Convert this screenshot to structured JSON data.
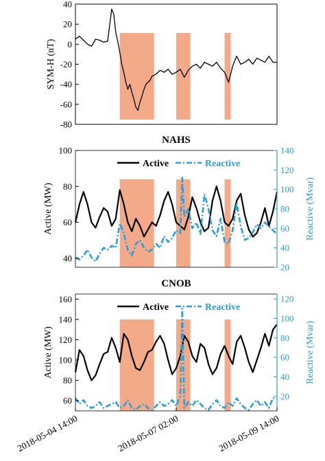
{
  "colors": {
    "active": "#000000",
    "reactive": "#2a9fd6",
    "shade": "#f4a988",
    "axis": "#000000"
  },
  "x_ticks": [
    "2018-05-04 14:00",
    "2018-05-07 02:00",
    "2018-05-09 14:00"
  ],
  "shaded_intervals": [
    [
      0.22,
      0.39
    ],
    [
      0.5,
      0.57
    ],
    [
      0.74,
      0.77
    ]
  ],
  "chart_data": [
    {
      "type": "line",
      "title": "",
      "ylabel": "SYM-H (nT)",
      "ylim": [
        -80,
        40
      ],
      "yticks": [
        40,
        20,
        0,
        -20,
        -40,
        -60,
        -80
      ],
      "series": [
        {
          "x": [
            0,
            0.02,
            0.04,
            0.06,
            0.08,
            0.1,
            0.12,
            0.14,
            0.16,
            0.18,
            0.19,
            0.2,
            0.21,
            0.22,
            0.23,
            0.24,
            0.25,
            0.26,
            0.27,
            0.28,
            0.29,
            0.3,
            0.31,
            0.32,
            0.33,
            0.34,
            0.35,
            0.36,
            0.37,
            0.38,
            0.4,
            0.42,
            0.44,
            0.46,
            0.48,
            0.5,
            0.52,
            0.54,
            0.56,
            0.58,
            0.6,
            0.62,
            0.64,
            0.66,
            0.68,
            0.7,
            0.72,
            0.74,
            0.76,
            0.78,
            0.8,
            0.82,
            0.84,
            0.86,
            0.88,
            0.9,
            0.92,
            0.94,
            0.96,
            0.98,
            1.0
          ],
          "values": [
            5,
            8,
            4,
            0,
            -2,
            5,
            4,
            2,
            3,
            35,
            30,
            12,
            3,
            -8,
            -20,
            -28,
            -38,
            -45,
            -40,
            -48,
            -55,
            -63,
            -66,
            -58,
            -52,
            -45,
            -40,
            -38,
            -36,
            -32,
            -30,
            -26,
            -28,
            -25,
            -30,
            -28,
            -25,
            -33,
            -26,
            -22,
            -20,
            -24,
            -18,
            -20,
            -22,
            -18,
            -24,
            -28,
            -38,
            -22,
            -12,
            -20,
            -18,
            -15,
            -20,
            -14,
            -16,
            -18,
            -12,
            -18,
            -18
          ]
        }
      ]
    },
    {
      "type": "line",
      "title": "NAHS",
      "ylabel": "Active (MW)",
      "ylabel_right": "Reactive (Mvar)",
      "ylim": [
        35,
        100
      ],
      "yticks": [
        100,
        80,
        60,
        40
      ],
      "ylim_right": [
        20,
        140
      ],
      "yticks_right": [
        140,
        120,
        100,
        80,
        60,
        40,
        20
      ],
      "legend": [
        "Active",
        "Reactive"
      ],
      "series": [
        {
          "name": "Active",
          "axis": "left",
          "x": [
            0,
            0.02,
            0.04,
            0.06,
            0.08,
            0.1,
            0.12,
            0.14,
            0.16,
            0.18,
            0.2,
            0.22,
            0.24,
            0.26,
            0.28,
            0.3,
            0.32,
            0.34,
            0.36,
            0.38,
            0.4,
            0.42,
            0.44,
            0.46,
            0.48,
            0.5,
            0.52,
            0.54,
            0.56,
            0.58,
            0.6,
            0.62,
            0.64,
            0.66,
            0.68,
            0.7,
            0.72,
            0.74,
            0.76,
            0.78,
            0.8,
            0.82,
            0.84,
            0.86,
            0.88,
            0.9,
            0.92,
            0.94,
            0.96,
            0.98,
            1.0
          ],
          "values": [
            60,
            70,
            77,
            70,
            60,
            57,
            63,
            68,
            66,
            58,
            62,
            78,
            70,
            60,
            55,
            62,
            58,
            52,
            56,
            60,
            58,
            64,
            72,
            77,
            70,
            60,
            58,
            56,
            63,
            74,
            68,
            60,
            55,
            57,
            72,
            80,
            72,
            60,
            58,
            62,
            72,
            76,
            64,
            56,
            52,
            54,
            60,
            68,
            58,
            66,
            77
          ]
        },
        {
          "name": "Reactive",
          "axis": "right",
          "x": [
            0,
            0.02,
            0.04,
            0.06,
            0.08,
            0.1,
            0.12,
            0.14,
            0.16,
            0.18,
            0.2,
            0.22,
            0.24,
            0.26,
            0.28,
            0.3,
            0.32,
            0.34,
            0.36,
            0.38,
            0.4,
            0.42,
            0.44,
            0.46,
            0.48,
            0.5,
            0.52,
            0.53,
            0.54,
            0.56,
            0.58,
            0.6,
            0.62,
            0.64,
            0.66,
            0.68,
            0.7,
            0.72,
            0.74,
            0.76,
            0.78,
            0.8,
            0.82,
            0.84,
            0.86,
            0.88,
            0.9,
            0.92,
            0.94,
            0.96,
            0.98,
            1.0
          ],
          "values": [
            30,
            28,
            32,
            38,
            30,
            26,
            34,
            40,
            38,
            42,
            40,
            65,
            55,
            38,
            32,
            44,
            48,
            40,
            36,
            38,
            44,
            40,
            52,
            46,
            50,
            58,
            55,
            112,
            72,
            80,
            60,
            66,
            54,
            95,
            80,
            58,
            52,
            70,
            46,
            44,
            58,
            86,
            62,
            48,
            50,
            56,
            64,
            60,
            66,
            62,
            58,
            54
          ]
        }
      ]
    },
    {
      "type": "line",
      "title": "CNOB",
      "ylabel": "Active (MW)",
      "ylabel_right": "Reactive (Mvar)",
      "ylim": [
        50,
        165
      ],
      "yticks": [
        160,
        140,
        120,
        100,
        80,
        60
      ],
      "ylim_right": [
        5,
        125
      ],
      "yticks_right": [
        120,
        100,
        80,
        60,
        40,
        20
      ],
      "legend": [
        "Active",
        "Reactive"
      ],
      "series": [
        {
          "name": "Active",
          "axis": "left",
          "x": [
            0,
            0.02,
            0.04,
            0.06,
            0.08,
            0.1,
            0.12,
            0.14,
            0.16,
            0.18,
            0.2,
            0.22,
            0.24,
            0.26,
            0.28,
            0.3,
            0.32,
            0.34,
            0.36,
            0.38,
            0.4,
            0.42,
            0.44,
            0.46,
            0.48,
            0.5,
            0.52,
            0.54,
            0.56,
            0.58,
            0.6,
            0.62,
            0.64,
            0.66,
            0.68,
            0.7,
            0.72,
            0.74,
            0.76,
            0.78,
            0.8,
            0.82,
            0.84,
            0.86,
            0.88,
            0.9,
            0.92,
            0.94,
            0.96,
            0.98,
            1.0
          ],
          "values": [
            88,
            110,
            104,
            90,
            80,
            85,
            96,
            106,
            108,
            122,
            112,
            98,
            126,
            120,
            104,
            92,
            90,
            98,
            108,
            110,
            118,
            124,
            116,
            100,
            86,
            92,
            104,
            124,
            118,
            104,
            98,
            116,
            112,
            96,
            86,
            92,
            106,
            114,
            104,
            96,
            118,
            124,
            112,
            98,
            88,
            100,
            112,
            126,
            114,
            130,
            135
          ]
        },
        {
          "name": "Reactive",
          "axis": "right",
          "x": [
            0,
            0.02,
            0.04,
            0.06,
            0.08,
            0.1,
            0.12,
            0.14,
            0.16,
            0.18,
            0.2,
            0.22,
            0.24,
            0.26,
            0.28,
            0.3,
            0.32,
            0.34,
            0.36,
            0.38,
            0.4,
            0.42,
            0.44,
            0.46,
            0.48,
            0.5,
            0.52,
            0.53,
            0.54,
            0.56,
            0.58,
            0.6,
            0.62,
            0.64,
            0.66,
            0.68,
            0.7,
            0.72,
            0.74,
            0.76,
            0.78,
            0.8,
            0.82,
            0.84,
            0.86,
            0.88,
            0.9,
            0.92,
            0.94,
            0.96,
            0.98,
            1.0
          ],
          "values": [
            18,
            12,
            16,
            10,
            8,
            10,
            14,
            8,
            10,
            12,
            14,
            8,
            10,
            16,
            8,
            6,
            10,
            12,
            8,
            6,
            10,
            14,
            10,
            12,
            16,
            10,
            20,
            110,
            8,
            14,
            10,
            16,
            12,
            8,
            6,
            12,
            16,
            10,
            8,
            14,
            10,
            18,
            12,
            8,
            6,
            12,
            16,
            10,
            14,
            8,
            18,
            18
          ]
        }
      ]
    }
  ]
}
